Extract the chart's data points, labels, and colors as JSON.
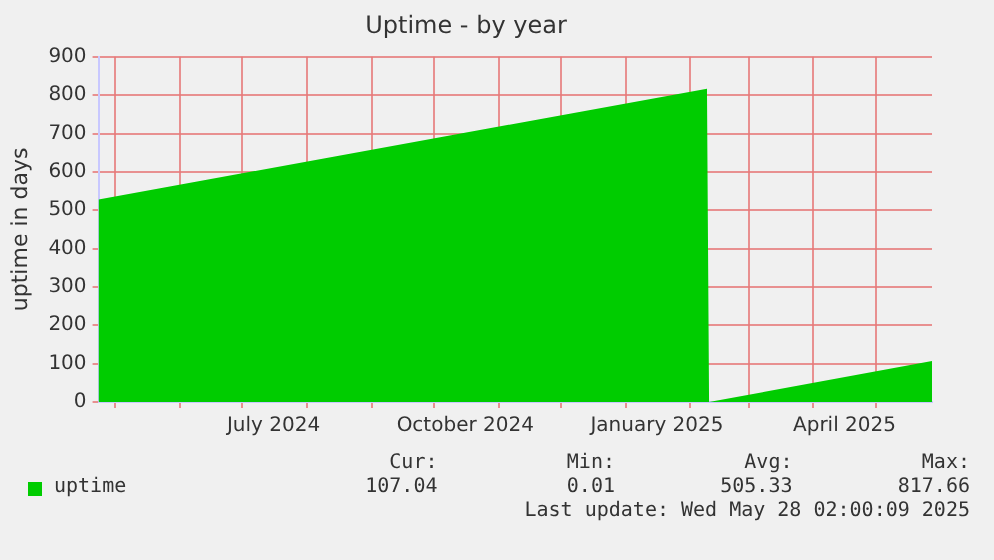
{
  "chart_data": {
    "type": "area",
    "title": "Uptime - by year",
    "ylabel": "uptime in days",
    "x": [
      "2024-04-23",
      "2025-02-09",
      "2025-02-10",
      "2025-05-28"
    ],
    "series": [
      {
        "name": "uptime",
        "color": "#00cc00",
        "values": [
          528,
          817,
          0,
          107
        ]
      }
    ],
    "xlim": [
      "2024-04-23",
      "2025-05-28"
    ],
    "xticks": [
      {
        "value": "2024-05-01",
        "label": null
      },
      {
        "value": "2024-06-01",
        "label": null
      },
      {
        "value": "2024-07-01",
        "label": null
      },
      {
        "value": "2024-07-16",
        "label": "July 2024"
      },
      {
        "value": "2024-08-01",
        "label": null
      },
      {
        "value": "2024-09-01",
        "label": null
      },
      {
        "value": "2024-10-01",
        "label": null
      },
      {
        "value": "2024-10-16",
        "label": "October 2024"
      },
      {
        "value": "2024-11-01",
        "label": null
      },
      {
        "value": "2024-12-01",
        "label": null
      },
      {
        "value": "2025-01-01",
        "label": null
      },
      {
        "value": "2025-01-16",
        "label": "January 2025"
      },
      {
        "value": "2025-02-01",
        "label": null
      },
      {
        "value": "2025-03-01",
        "label": null
      },
      {
        "value": "2025-04-01",
        "label": null
      },
      {
        "value": "2025-04-16",
        "label": "April 2025"
      },
      {
        "value": "2025-05-01",
        "label": null
      }
    ],
    "ylim": [
      0,
      900
    ],
    "yticks": [
      0,
      100,
      200,
      300,
      400,
      500,
      600,
      700,
      800,
      900
    ],
    "grid": true,
    "legend": "bottom left",
    "annotations": [
      "Cur:",
      "Min:",
      "Avg:",
      "Max:",
      "107.04",
      "0.01",
      "505.33",
      "817.66",
      "Last update: Wed May 28 02:00:09 2025"
    ]
  }
}
